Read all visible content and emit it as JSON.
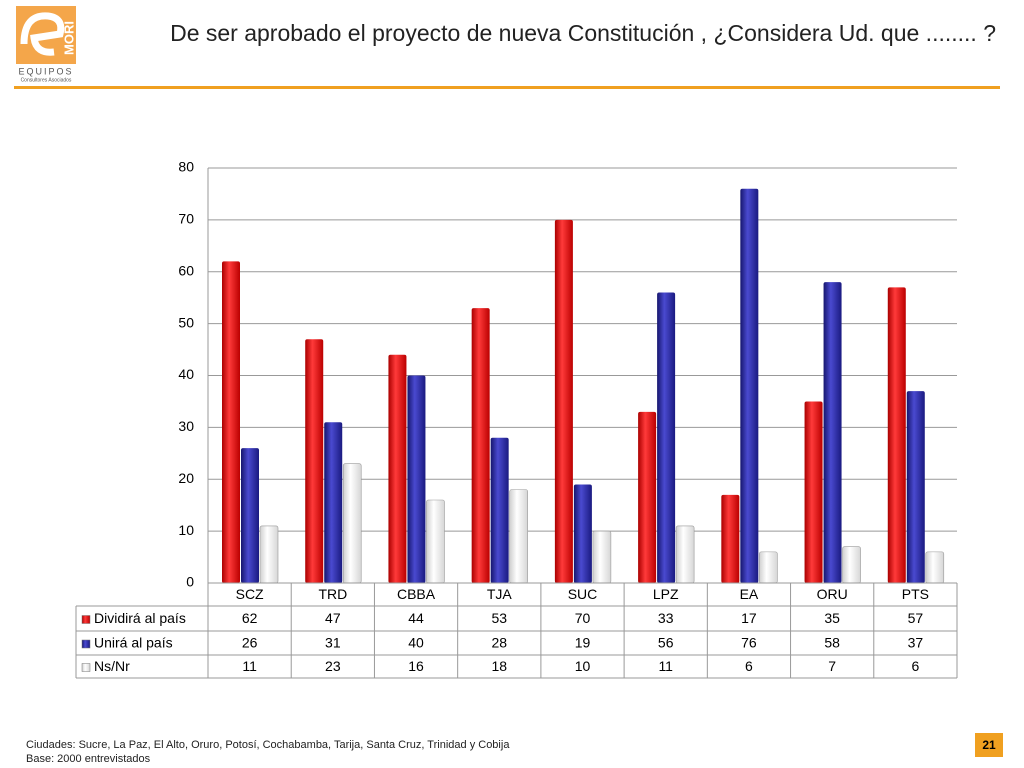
{
  "logo": {
    "brand": "MORI",
    "name": "EQUIPOS",
    "tagline": "Consultores Asociados"
  },
  "chart_data": {
    "type": "bar",
    "title": "De ser aprobado el proyecto de nueva Constitución , ¿Considera Ud. que ........ ?",
    "categories": [
      "SCZ",
      "TRD",
      "CBBA",
      "TJA",
      "SUC",
      "LPZ",
      "EA",
      "ORU",
      "PTS"
    ],
    "series": [
      {
        "name": "Dividirá al país",
        "color": "#e8141b",
        "values": [
          62,
          47,
          44,
          53,
          70,
          33,
          17,
          35,
          57
        ]
      },
      {
        "name": "Unirá al país",
        "color": "#2b2ba6",
        "values": [
          26,
          31,
          40,
          28,
          19,
          56,
          76,
          58,
          37
        ]
      },
      {
        "name": "Ns/Nr",
        "color": "#f2f2f2",
        "values": [
          11,
          23,
          16,
          18,
          10,
          11,
          6,
          7,
          6
        ]
      }
    ],
    "ylim": [
      0,
      80
    ],
    "yticks": [
      0,
      10,
      20,
      30,
      40,
      50,
      60,
      70,
      80
    ],
    "grid": true
  },
  "footnotes": [
    "Ciudades: Sucre, La Paz, El Alto, Oruro, Potosí, Cochabamba, Tarija, Santa Cruz, Trinidad y Cobija",
    "Base: 2000 entrevistados"
  ],
  "page_number": "21"
}
